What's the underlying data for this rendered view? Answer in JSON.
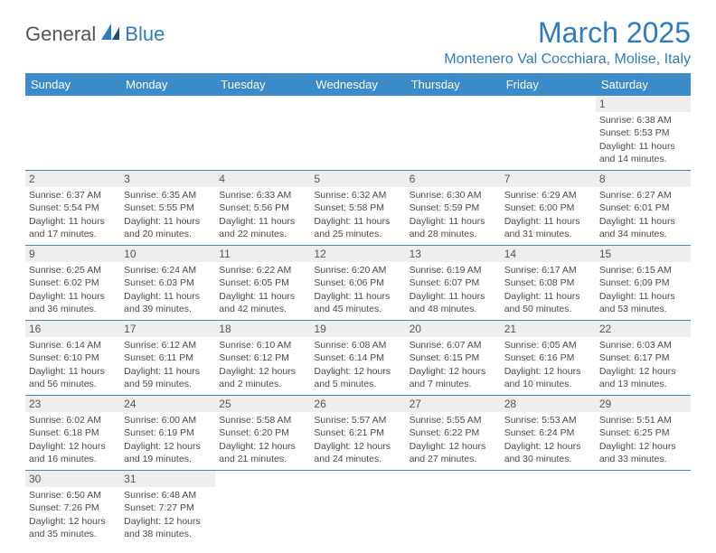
{
  "logo": {
    "part1": "General",
    "part2": "Blue"
  },
  "title": "March 2025",
  "location": "Montenero Val Cocchiara, Molise, Italy",
  "colors": {
    "brand_blue": "#3b8bc8",
    "text_gray": "#4a4a4a",
    "daynum_bg": "#eeeeee"
  },
  "days_of_week": [
    "Sunday",
    "Monday",
    "Tuesday",
    "Wednesday",
    "Thursday",
    "Friday",
    "Saturday"
  ],
  "weeks": [
    [
      null,
      null,
      null,
      null,
      null,
      null,
      {
        "n": "1",
        "rise": "Sunrise: 6:38 AM",
        "set": "Sunset: 5:53 PM",
        "dl": "Daylight: 11 hours and 14 minutes."
      }
    ],
    [
      {
        "n": "2",
        "rise": "Sunrise: 6:37 AM",
        "set": "Sunset: 5:54 PM",
        "dl": "Daylight: 11 hours and 17 minutes."
      },
      {
        "n": "3",
        "rise": "Sunrise: 6:35 AM",
        "set": "Sunset: 5:55 PM",
        "dl": "Daylight: 11 hours and 20 minutes."
      },
      {
        "n": "4",
        "rise": "Sunrise: 6:33 AM",
        "set": "Sunset: 5:56 PM",
        "dl": "Daylight: 11 hours and 22 minutes."
      },
      {
        "n": "5",
        "rise": "Sunrise: 6:32 AM",
        "set": "Sunset: 5:58 PM",
        "dl": "Daylight: 11 hours and 25 minutes."
      },
      {
        "n": "6",
        "rise": "Sunrise: 6:30 AM",
        "set": "Sunset: 5:59 PM",
        "dl": "Daylight: 11 hours and 28 minutes."
      },
      {
        "n": "7",
        "rise": "Sunrise: 6:29 AM",
        "set": "Sunset: 6:00 PM",
        "dl": "Daylight: 11 hours and 31 minutes."
      },
      {
        "n": "8",
        "rise": "Sunrise: 6:27 AM",
        "set": "Sunset: 6:01 PM",
        "dl": "Daylight: 11 hours and 34 minutes."
      }
    ],
    [
      {
        "n": "9",
        "rise": "Sunrise: 6:25 AM",
        "set": "Sunset: 6:02 PM",
        "dl": "Daylight: 11 hours and 36 minutes."
      },
      {
        "n": "10",
        "rise": "Sunrise: 6:24 AM",
        "set": "Sunset: 6:03 PM",
        "dl": "Daylight: 11 hours and 39 minutes."
      },
      {
        "n": "11",
        "rise": "Sunrise: 6:22 AM",
        "set": "Sunset: 6:05 PM",
        "dl": "Daylight: 11 hours and 42 minutes."
      },
      {
        "n": "12",
        "rise": "Sunrise: 6:20 AM",
        "set": "Sunset: 6:06 PM",
        "dl": "Daylight: 11 hours and 45 minutes."
      },
      {
        "n": "13",
        "rise": "Sunrise: 6:19 AM",
        "set": "Sunset: 6:07 PM",
        "dl": "Daylight: 11 hours and 48 minutes."
      },
      {
        "n": "14",
        "rise": "Sunrise: 6:17 AM",
        "set": "Sunset: 6:08 PM",
        "dl": "Daylight: 11 hours and 50 minutes."
      },
      {
        "n": "15",
        "rise": "Sunrise: 6:15 AM",
        "set": "Sunset: 6:09 PM",
        "dl": "Daylight: 11 hours and 53 minutes."
      }
    ],
    [
      {
        "n": "16",
        "rise": "Sunrise: 6:14 AM",
        "set": "Sunset: 6:10 PM",
        "dl": "Daylight: 11 hours and 56 minutes."
      },
      {
        "n": "17",
        "rise": "Sunrise: 6:12 AM",
        "set": "Sunset: 6:11 PM",
        "dl": "Daylight: 11 hours and 59 minutes."
      },
      {
        "n": "18",
        "rise": "Sunrise: 6:10 AM",
        "set": "Sunset: 6:12 PM",
        "dl": "Daylight: 12 hours and 2 minutes."
      },
      {
        "n": "19",
        "rise": "Sunrise: 6:08 AM",
        "set": "Sunset: 6:14 PM",
        "dl": "Daylight: 12 hours and 5 minutes."
      },
      {
        "n": "20",
        "rise": "Sunrise: 6:07 AM",
        "set": "Sunset: 6:15 PM",
        "dl": "Daylight: 12 hours and 7 minutes."
      },
      {
        "n": "21",
        "rise": "Sunrise: 6:05 AM",
        "set": "Sunset: 6:16 PM",
        "dl": "Daylight: 12 hours and 10 minutes."
      },
      {
        "n": "22",
        "rise": "Sunrise: 6:03 AM",
        "set": "Sunset: 6:17 PM",
        "dl": "Daylight: 12 hours and 13 minutes."
      }
    ],
    [
      {
        "n": "23",
        "rise": "Sunrise: 6:02 AM",
        "set": "Sunset: 6:18 PM",
        "dl": "Daylight: 12 hours and 16 minutes."
      },
      {
        "n": "24",
        "rise": "Sunrise: 6:00 AM",
        "set": "Sunset: 6:19 PM",
        "dl": "Daylight: 12 hours and 19 minutes."
      },
      {
        "n": "25",
        "rise": "Sunrise: 5:58 AM",
        "set": "Sunset: 6:20 PM",
        "dl": "Daylight: 12 hours and 21 minutes."
      },
      {
        "n": "26",
        "rise": "Sunrise: 5:57 AM",
        "set": "Sunset: 6:21 PM",
        "dl": "Daylight: 12 hours and 24 minutes."
      },
      {
        "n": "27",
        "rise": "Sunrise: 5:55 AM",
        "set": "Sunset: 6:22 PM",
        "dl": "Daylight: 12 hours and 27 minutes."
      },
      {
        "n": "28",
        "rise": "Sunrise: 5:53 AM",
        "set": "Sunset: 6:24 PM",
        "dl": "Daylight: 12 hours and 30 minutes."
      },
      {
        "n": "29",
        "rise": "Sunrise: 5:51 AM",
        "set": "Sunset: 6:25 PM",
        "dl": "Daylight: 12 hours and 33 minutes."
      }
    ],
    [
      {
        "n": "30",
        "rise": "Sunrise: 6:50 AM",
        "set": "Sunset: 7:26 PM",
        "dl": "Daylight: 12 hours and 35 minutes."
      },
      {
        "n": "31",
        "rise": "Sunrise: 6:48 AM",
        "set": "Sunset: 7:27 PM",
        "dl": "Daylight: 12 hours and 38 minutes."
      },
      null,
      null,
      null,
      null,
      null
    ]
  ]
}
